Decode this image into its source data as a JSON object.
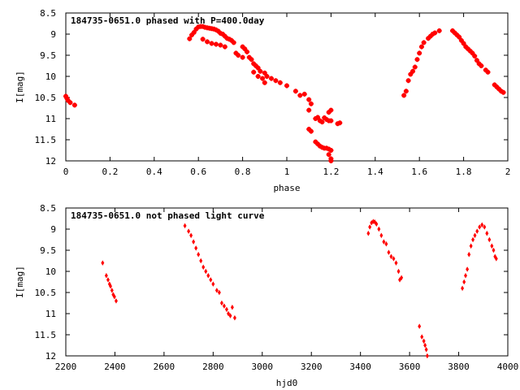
{
  "chart_data": [
    {
      "type": "scatter",
      "title": "184735-0651.0 phased with P=400.0day",
      "xlabel": "phase",
      "ylabel": "I[mag]",
      "xlim": [
        0,
        2
      ],
      "ylim": [
        12,
        8.5
      ],
      "y_inverted": true,
      "xticks": [
        "0",
        "0.2",
        "0.4",
        "0.6",
        "0.8",
        "1",
        "1.2",
        "1.4",
        "1.6",
        "1.8",
        "2"
      ],
      "xtick_values": [
        0,
        0.2,
        0.4,
        0.6,
        0.8,
        1,
        1.2,
        1.4,
        1.6,
        1.8,
        2
      ],
      "yticks": [
        "8.5",
        "9",
        "9.5",
        "10",
        "10.5",
        "11",
        "11.5",
        "12"
      ],
      "ytick_values": [
        8.5,
        9,
        9.5,
        10,
        10.5,
        11,
        11.5,
        12
      ],
      "marker_color": "#ff0000",
      "marker": "plus",
      "points": [
        [
          0.0,
          10.47
        ],
        [
          0.005,
          10.52
        ],
        [
          0.01,
          10.57
        ],
        [
          0.02,
          10.62
        ],
        [
          0.04,
          10.68
        ],
        [
          0.56,
          9.11
        ],
        [
          0.57,
          9.02
        ],
        [
          0.58,
          8.96
        ],
        [
          0.59,
          8.88
        ],
        [
          0.6,
          8.83
        ],
        [
          0.61,
          8.82
        ],
        [
          0.62,
          8.82
        ],
        [
          0.63,
          8.84
        ],
        [
          0.64,
          8.85
        ],
        [
          0.65,
          8.86
        ],
        [
          0.66,
          8.87
        ],
        [
          0.67,
          8.88
        ],
        [
          0.68,
          8.9
        ],
        [
          0.69,
          8.93
        ],
        [
          0.7,
          8.98
        ],
        [
          0.62,
          9.12
        ],
        [
          0.64,
          9.18
        ],
        [
          0.66,
          9.22
        ],
        [
          0.68,
          9.24
        ],
        [
          0.7,
          9.26
        ],
        [
          0.72,
          9.3
        ],
        [
          0.71,
          9.0
        ],
        [
          0.72,
          9.05
        ],
        [
          0.73,
          9.1
        ],
        [
          0.74,
          9.12
        ],
        [
          0.75,
          9.15
        ],
        [
          0.76,
          9.2
        ],
        [
          0.77,
          9.45
        ],
        [
          0.78,
          9.5
        ],
        [
          0.8,
          9.55
        ],
        [
          0.8,
          9.3
        ],
        [
          0.81,
          9.35
        ],
        [
          0.82,
          9.42
        ],
        [
          0.83,
          9.55
        ],
        [
          0.84,
          9.6
        ],
        [
          0.85,
          9.7
        ],
        [
          0.86,
          9.75
        ],
        [
          0.87,
          9.8
        ],
        [
          0.88,
          9.88
        ],
        [
          0.85,
          9.9
        ],
        [
          0.87,
          10.0
        ],
        [
          0.89,
          10.05
        ],
        [
          0.9,
          9.92
        ],
        [
          0.91,
          10.0
        ],
        [
          0.93,
          10.05
        ],
        [
          0.95,
          10.1
        ],
        [
          0.97,
          10.15
        ],
        [
          1.0,
          10.22
        ],
        [
          0.9,
          10.15
        ],
        [
          1.04,
          10.35
        ],
        [
          1.06,
          10.45
        ],
        [
          1.08,
          10.42
        ],
        [
          1.1,
          10.55
        ],
        [
          1.11,
          10.65
        ],
        [
          1.1,
          10.8
        ],
        [
          1.1,
          11.25
        ],
        [
          1.11,
          11.3
        ],
        [
          1.13,
          11.0
        ],
        [
          1.14,
          10.97
        ],
        [
          1.15,
          11.05
        ],
        [
          1.16,
          11.08
        ],
        [
          1.17,
          10.98
        ],
        [
          1.18,
          11.02
        ],
        [
          1.19,
          11.05
        ],
        [
          1.2,
          11.05
        ],
        [
          1.19,
          10.85
        ],
        [
          1.2,
          10.8
        ],
        [
          1.23,
          11.12
        ],
        [
          1.24,
          11.1
        ],
        [
          1.13,
          11.55
        ],
        [
          1.14,
          11.6
        ],
        [
          1.15,
          11.65
        ],
        [
          1.16,
          11.68
        ],
        [
          1.17,
          11.7
        ],
        [
          1.18,
          11.7
        ],
        [
          1.19,
          11.72
        ],
        [
          1.2,
          11.75
        ],
        [
          1.19,
          11.85
        ],
        [
          1.2,
          11.95
        ],
        [
          1.2,
          12.0
        ],
        [
          1.53,
          10.45
        ],
        [
          1.54,
          10.35
        ],
        [
          1.55,
          10.1
        ],
        [
          1.56,
          9.95
        ],
        [
          1.57,
          9.88
        ],
        [
          1.58,
          9.78
        ],
        [
          1.59,
          9.6
        ],
        [
          1.6,
          9.45
        ],
        [
          1.61,
          9.3
        ],
        [
          1.62,
          9.2
        ],
        [
          1.64,
          9.1
        ],
        [
          1.65,
          9.05
        ],
        [
          1.66,
          9.0
        ],
        [
          1.67,
          8.97
        ],
        [
          1.69,
          8.92
        ],
        [
          1.75,
          8.92
        ],
        [
          1.76,
          8.97
        ],
        [
          1.77,
          9.02
        ],
        [
          1.78,
          9.07
        ],
        [
          1.79,
          9.15
        ],
        [
          1.8,
          9.22
        ],
        [
          1.81,
          9.3
        ],
        [
          1.82,
          9.35
        ],
        [
          1.83,
          9.4
        ],
        [
          1.84,
          9.45
        ],
        [
          1.85,
          9.52
        ],
        [
          1.86,
          9.62
        ],
        [
          1.87,
          9.7
        ],
        [
          1.88,
          9.75
        ],
        [
          1.9,
          9.85
        ],
        [
          1.91,
          9.9
        ],
        [
          1.94,
          10.2
        ],
        [
          1.95,
          10.25
        ],
        [
          1.96,
          10.3
        ],
        [
          1.97,
          10.35
        ],
        [
          1.98,
          10.38
        ]
      ]
    },
    {
      "type": "scatter",
      "title": "184735-0651.0 not phased light curve",
      "xlabel": "hjd0",
      "ylabel": "I[mag]",
      "xlim": [
        2200,
        4000
      ],
      "ylim": [
        12,
        8.5
      ],
      "y_inverted": true,
      "xticks": [
        "2200",
        "2400",
        "2600",
        "2800",
        "3000",
        "3200",
        "3400",
        "3600",
        "3800",
        "4000"
      ],
      "xtick_values": [
        2200,
        2400,
        2600,
        2800,
        3000,
        3200,
        3400,
        3600,
        3800,
        4000
      ],
      "yticks": [
        "8.5",
        "9",
        "9.5",
        "10",
        "10.5",
        "11",
        "11.5",
        "12"
      ],
      "ytick_values": [
        8.5,
        9,
        9.5,
        10,
        10.5,
        11,
        11.5,
        12
      ],
      "marker_color": "#ff0000",
      "marker": "diamond",
      "points": [
        [
          2350,
          9.8
        ],
        [
          2365,
          10.1
        ],
        [
          2372,
          10.2
        ],
        [
          2378,
          10.3
        ],
        [
          2382,
          10.35
        ],
        [
          2388,
          10.45
        ],
        [
          2393,
          10.55
        ],
        [
          2398,
          10.6
        ],
        [
          2405,
          10.7
        ],
        [
          2685,
          8.92
        ],
        [
          2700,
          9.05
        ],
        [
          2710,
          9.15
        ],
        [
          2720,
          9.3
        ],
        [
          2730,
          9.45
        ],
        [
          2740,
          9.6
        ],
        [
          2750,
          9.75
        ],
        [
          2760,
          9.9
        ],
        [
          2770,
          10.0
        ],
        [
          2780,
          10.1
        ],
        [
          2790,
          10.2
        ],
        [
          2800,
          10.3
        ],
        [
          2815,
          10.45
        ],
        [
          2825,
          10.5
        ],
        [
          2835,
          10.75
        ],
        [
          2845,
          10.82
        ],
        [
          2855,
          10.9
        ],
        [
          2862,
          11.0
        ],
        [
          2870,
          11.05
        ],
        [
          2878,
          10.85
        ],
        [
          2888,
          11.1
        ],
        [
          3432,
          9.1
        ],
        [
          3438,
          8.95
        ],
        [
          3445,
          8.85
        ],
        [
          3452,
          8.82
        ],
        [
          3458,
          8.83
        ],
        [
          3465,
          8.88
        ],
        [
          3475,
          9.0
        ],
        [
          3485,
          9.15
        ],
        [
          3495,
          9.3
        ],
        [
          3505,
          9.35
        ],
        [
          3515,
          9.55
        ],
        [
          3525,
          9.65
        ],
        [
          3535,
          9.7
        ],
        [
          3545,
          9.8
        ],
        [
          3555,
          10.0
        ],
        [
          3560,
          10.2
        ],
        [
          3567,
          10.15
        ],
        [
          3640,
          11.3
        ],
        [
          3650,
          11.55
        ],
        [
          3658,
          11.65
        ],
        [
          3663,
          11.75
        ],
        [
          3668,
          11.85
        ],
        [
          3672,
          12.0
        ],
        [
          3815,
          10.4
        ],
        [
          3822,
          10.25
        ],
        [
          3828,
          10.1
        ],
        [
          3835,
          9.95
        ],
        [
          3842,
          9.6
        ],
        [
          3850,
          9.4
        ],
        [
          3858,
          9.25
        ],
        [
          3866,
          9.15
        ],
        [
          3875,
          9.05
        ],
        [
          3885,
          8.95
        ],
        [
          3895,
          8.9
        ],
        [
          3905,
          8.95
        ],
        [
          3915,
          9.1
        ],
        [
          3925,
          9.25
        ],
        [
          3935,
          9.4
        ],
        [
          3942,
          9.5
        ],
        [
          3948,
          9.65
        ],
        [
          3953,
          9.7
        ]
      ]
    }
  ]
}
